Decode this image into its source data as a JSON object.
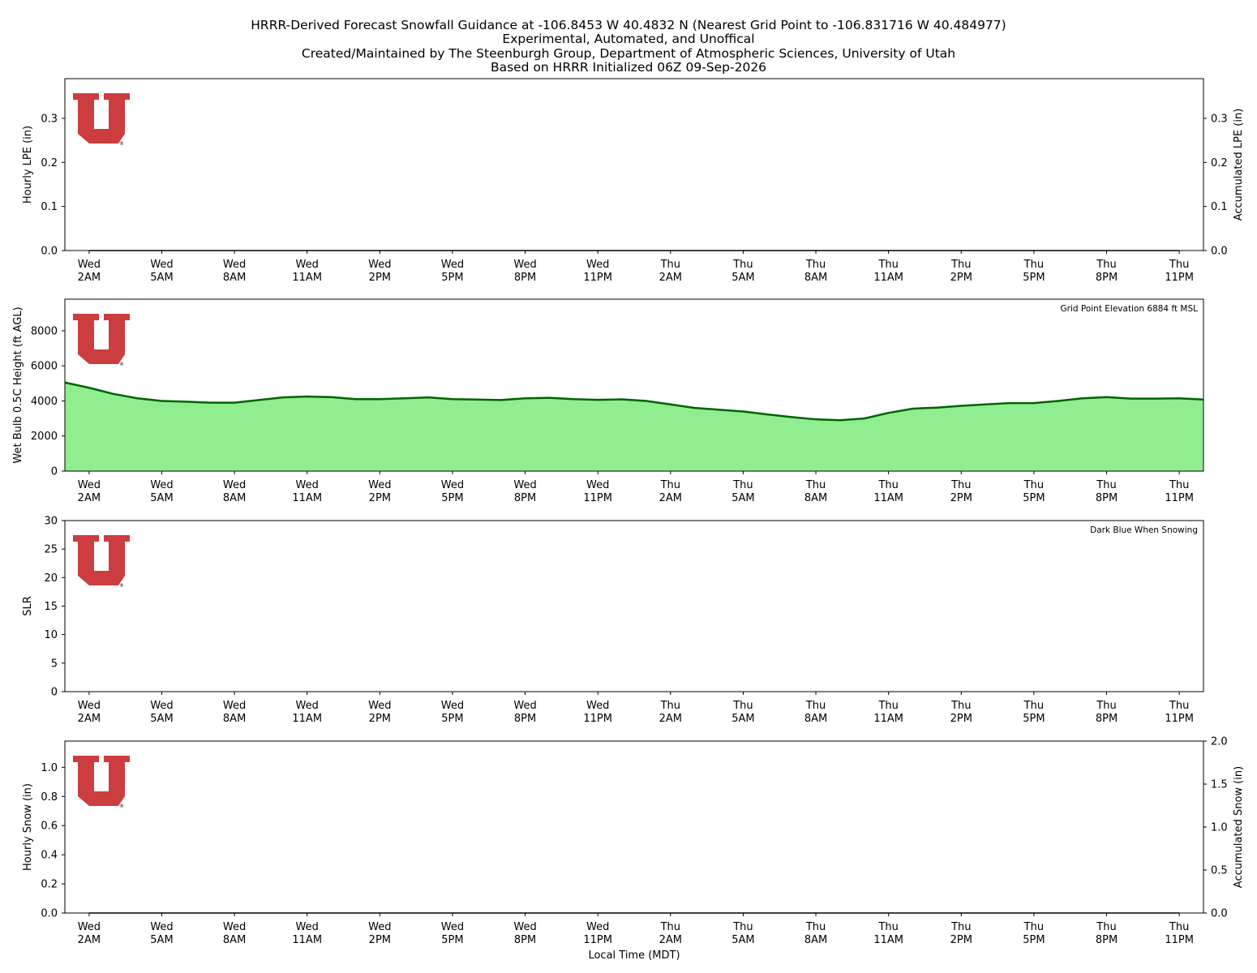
{
  "title_lines": [
    "HRRR-Derived Forecast Snowfall Guidance at -106.8453 W 40.4832 N (Nearest Grid Point to -106.831716 W 40.484977)",
    "Experimental, Automated, and Unoffical",
    "Created/Maintained by The Steenburgh Group, Department of Atmospheric Sciences, University of Utah",
    "Based on HRRR Initialized 06Z 09-Sep-2026"
  ],
  "x_tick_labels": [
    [
      "Wed",
      "2AM"
    ],
    [
      "Wed",
      "5AM"
    ],
    [
      "Wed",
      "8AM"
    ],
    [
      "Wed",
      "11AM"
    ],
    [
      "Wed",
      "2PM"
    ],
    [
      "Wed",
      "5PM"
    ],
    [
      "Wed",
      "8PM"
    ],
    [
      "Wed",
      "11PM"
    ],
    [
      "Thu",
      "2AM"
    ],
    [
      "Thu",
      "5AM"
    ],
    [
      "Thu",
      "8AM"
    ],
    [
      "Thu",
      "11AM"
    ],
    [
      "Thu",
      "2PM"
    ],
    [
      "Thu",
      "5PM"
    ],
    [
      "Thu",
      "8PM"
    ],
    [
      "Thu",
      "11PM"
    ]
  ],
  "x_axis_label": "Local Time (MDT)",
  "colors": {
    "logo": "#cc3d3f",
    "wetbulb_fill": "#90ee90",
    "wetbulb_line": "#006400",
    "zero_line": "#000000"
  },
  "logo_mark": "®",
  "chart_data": [
    {
      "type": "bar",
      "name": "panel-lpe",
      "ylabel": "Hourly LPE (in)",
      "ylabel_right": "Accumulated LPE (in)",
      "ylim": [
        0,
        0.39
      ],
      "yticks": [
        0.0,
        0.1,
        0.2,
        0.3
      ],
      "ytick_labels": [
        "0.0",
        "0.1",
        "0.2",
        "0.3"
      ],
      "yticks_right": [
        0.0,
        0.1,
        0.2,
        0.3
      ],
      "ytick_labels_right": [
        "0.0",
        "0.1",
        "0.2",
        "0.3"
      ],
      "xlim": [
        -1,
        46
      ],
      "x": [
        0,
        1,
        2,
        3,
        4,
        5,
        6,
        7,
        8,
        9,
        10,
        11,
        12,
        13,
        14,
        15,
        16,
        17,
        18,
        19,
        20,
        21,
        22,
        23,
        24,
        25,
        26,
        27,
        28,
        29,
        30,
        31,
        32,
        33,
        34,
        35,
        36,
        37,
        38,
        39,
        40,
        41,
        42,
        43,
        44,
        45
      ],
      "values": [
        0,
        0,
        0,
        0,
        0,
        0,
        0,
        0,
        0,
        0,
        0,
        0,
        0,
        0,
        0,
        0,
        0,
        0,
        0,
        0,
        0,
        0,
        0,
        0,
        0,
        0,
        0,
        0,
        0,
        0,
        0,
        0,
        0,
        0,
        0,
        0,
        0,
        0,
        0,
        0,
        0,
        0,
        0,
        0,
        0,
        0
      ],
      "accumulated": [
        0,
        0,
        0,
        0,
        0,
        0,
        0,
        0,
        0,
        0,
        0,
        0,
        0,
        0,
        0,
        0,
        0,
        0,
        0,
        0,
        0,
        0,
        0,
        0,
        0,
        0,
        0,
        0,
        0,
        0,
        0,
        0,
        0,
        0,
        0,
        0,
        0,
        0,
        0,
        0,
        0,
        0,
        0,
        0,
        0,
        0
      ]
    },
    {
      "type": "area",
      "name": "panel-wetbulb",
      "ylabel": "Wet Bulb 0.5C Height (ft AGL)",
      "ylim": [
        0,
        9800
      ],
      "yticks": [
        0,
        2000,
        4000,
        6000,
        8000
      ],
      "ytick_labels": [
        "0",
        "2000",
        "4000",
        "6000",
        "8000"
      ],
      "annotation": "Grid Point Elevation 6884 ft MSL",
      "xlim": [
        -1,
        46
      ],
      "x": [
        -1,
        0,
        1,
        2,
        3,
        4,
        5,
        6,
        7,
        8,
        9,
        10,
        11,
        12,
        13,
        14,
        15,
        16,
        17,
        18,
        19,
        20,
        21,
        22,
        23,
        24,
        25,
        26,
        27,
        28,
        29,
        30,
        31,
        32,
        33,
        34,
        35,
        36,
        37,
        38,
        39,
        40,
        41,
        42,
        43,
        44,
        45,
        46
      ],
      "values": [
        5050,
        4750,
        4400,
        4150,
        4000,
        3960,
        3900,
        3900,
        4050,
        4200,
        4250,
        4220,
        4100,
        4100,
        4150,
        4200,
        4100,
        4080,
        4050,
        4150,
        4180,
        4100,
        4060,
        4090,
        4000,
        3800,
        3600,
        3500,
        3400,
        3230,
        3080,
        2950,
        2900,
        3000,
        3320,
        3560,
        3620,
        3720,
        3800,
        3880,
        3880,
        4000,
        4150,
        4220,
        4130,
        4130,
        4150,
        4080
      ]
    },
    {
      "type": "bar",
      "name": "panel-slr",
      "ylabel": "SLR",
      "ylim": [
        0,
        30
      ],
      "yticks": [
        0,
        5,
        10,
        15,
        20,
        25,
        30
      ],
      "ytick_labels": [
        "0",
        "5",
        "10",
        "15",
        "20",
        "25",
        "30"
      ],
      "annotation": "Dark Blue When Snowing",
      "xlim": [
        -1,
        46
      ],
      "x": [],
      "values": []
    },
    {
      "type": "bar",
      "name": "panel-snow",
      "ylabel": "Hourly Snow (in)",
      "ylabel_right": "Accumulated Snow (in)",
      "ylim": [
        0,
        1.18
      ],
      "yticks": [
        0.0,
        0.2,
        0.4,
        0.6,
        0.8,
        1.0
      ],
      "ytick_labels": [
        "0.0",
        "0.2",
        "0.4",
        "0.6",
        "0.8",
        "1.0"
      ],
      "ylim_right": [
        0,
        2.0
      ],
      "yticks_right": [
        0.0,
        0.5,
        1.0,
        1.5,
        2.0
      ],
      "ytick_labels_right": [
        "0.0",
        "0.5",
        "1.0",
        "1.5",
        "2.0"
      ],
      "xlim": [
        -1,
        46
      ],
      "x": [
        0,
        1,
        2,
        3,
        4,
        5,
        6,
        7,
        8,
        9,
        10,
        11,
        12,
        13,
        14,
        15,
        16,
        17,
        18,
        19,
        20,
        21,
        22,
        23,
        24,
        25,
        26,
        27,
        28,
        29,
        30,
        31,
        32,
        33,
        34,
        35,
        36,
        37,
        38,
        39,
        40,
        41,
        42,
        43,
        44,
        45
      ],
      "values": [
        0,
        0,
        0,
        0,
        0,
        0,
        0,
        0,
        0,
        0,
        0,
        0,
        0,
        0,
        0,
        0,
        0,
        0,
        0,
        0,
        0,
        0,
        0,
        0,
        0,
        0,
        0,
        0,
        0,
        0,
        0,
        0,
        0,
        0,
        0,
        0,
        0,
        0,
        0,
        0,
        0,
        0,
        0,
        0,
        0,
        0
      ],
      "accumulated": [
        0,
        0,
        0,
        0,
        0,
        0,
        0,
        0,
        0,
        0,
        0,
        0,
        0,
        0,
        0,
        0,
        0,
        0,
        0,
        0,
        0,
        0,
        0,
        0,
        0,
        0,
        0,
        0,
        0,
        0,
        0,
        0,
        0,
        0,
        0,
        0,
        0,
        0,
        0,
        0,
        0,
        0,
        0,
        0,
        0,
        0
      ]
    }
  ]
}
